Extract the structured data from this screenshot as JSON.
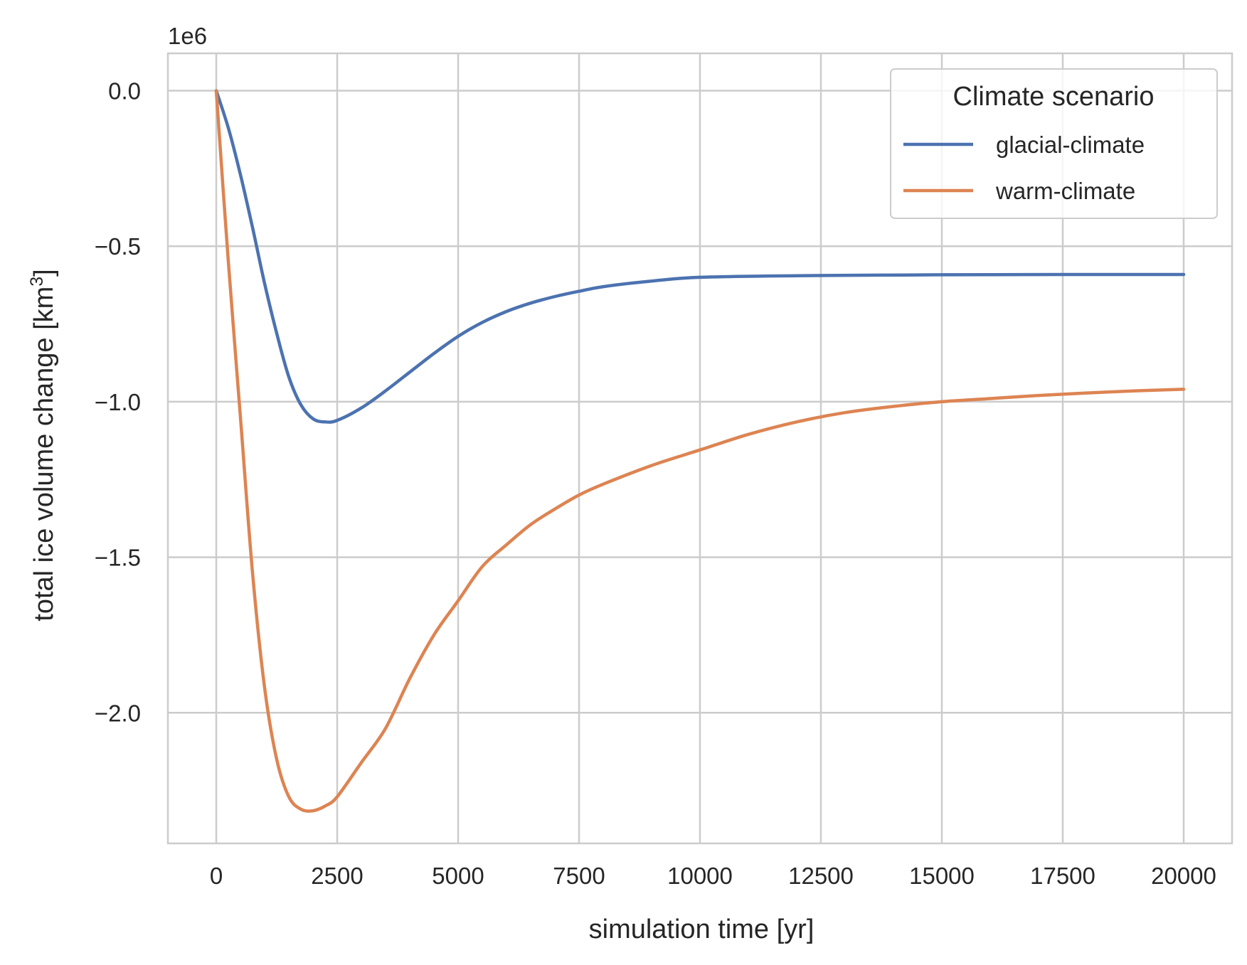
{
  "chart_data": {
    "type": "line",
    "title": "",
    "xlabel": "simulation time [yr]",
    "ylabel_main": "total ice volume change [km",
    "ylabel_sup": "3",
    "ylabel_end": "]",
    "offset_text": "1e6",
    "xlim": [
      -1000,
      21000
    ],
    "ylim": [
      -2.42,
      0.12
    ],
    "grid": true,
    "x_ticks": [
      0,
      2500,
      5000,
      7500,
      10000,
      12500,
      15000,
      17500,
      20000
    ],
    "x_tick_labels": [
      "0",
      "2500",
      "5000",
      "7500",
      "10000",
      "12500",
      "15000",
      "17500",
      "20000"
    ],
    "y_ticks": [
      0.0,
      -0.5,
      -1.0,
      -1.5,
      -2.0
    ],
    "y_tick_labels": [
      "0.0",
      "−0.5",
      "−1.0",
      "−1.5",
      "−2.0"
    ],
    "legend": {
      "title": "Climate scenario",
      "placement": "top-right"
    },
    "series": [
      {
        "name": "glacial-climate",
        "color": "#4c72b0",
        "x": [
          0,
          250,
          500,
          750,
          1000,
          1250,
          1500,
          1750,
          2000,
          2250,
          2500,
          3000,
          3500,
          4000,
          4500,
          5000,
          5500,
          6000,
          6500,
          7000,
          7500,
          8000,
          9000,
          10000,
          12000,
          15000,
          17500,
          20000
        ],
        "y": [
          0.0,
          -0.12,
          -0.27,
          -0.44,
          -0.62,
          -0.78,
          -0.92,
          -1.01,
          -1.055,
          -1.065,
          -1.06,
          -1.02,
          -0.965,
          -0.905,
          -0.845,
          -0.79,
          -0.745,
          -0.71,
          -0.683,
          -0.662,
          -0.645,
          -0.63,
          -0.612,
          -0.6,
          -0.595,
          -0.592,
          -0.591,
          -0.591
        ]
      },
      {
        "name": "warm-climate",
        "color": "#dd8452",
        "x": [
          0,
          250,
          500,
          750,
          1000,
          1250,
          1500,
          1750,
          2000,
          2250,
          2500,
          3000,
          3500,
          4000,
          4500,
          5000,
          5500,
          6000,
          6500,
          7000,
          7500,
          8000,
          9000,
          10000,
          11000,
          12000,
          13000,
          14000,
          15000,
          16000,
          17000,
          18000,
          19000,
          20000
        ],
        "y": [
          0.0,
          -0.55,
          -1.05,
          -1.55,
          -1.92,
          -2.15,
          -2.27,
          -2.31,
          -2.315,
          -2.3,
          -2.27,
          -2.16,
          -2.05,
          -1.89,
          -1.75,
          -1.64,
          -1.53,
          -1.46,
          -1.395,
          -1.345,
          -1.3,
          -1.265,
          -1.205,
          -1.155,
          -1.105,
          -1.065,
          -1.035,
          -1.015,
          -1.0,
          -0.99,
          -0.98,
          -0.972,
          -0.965,
          -0.96
        ]
      }
    ]
  }
}
